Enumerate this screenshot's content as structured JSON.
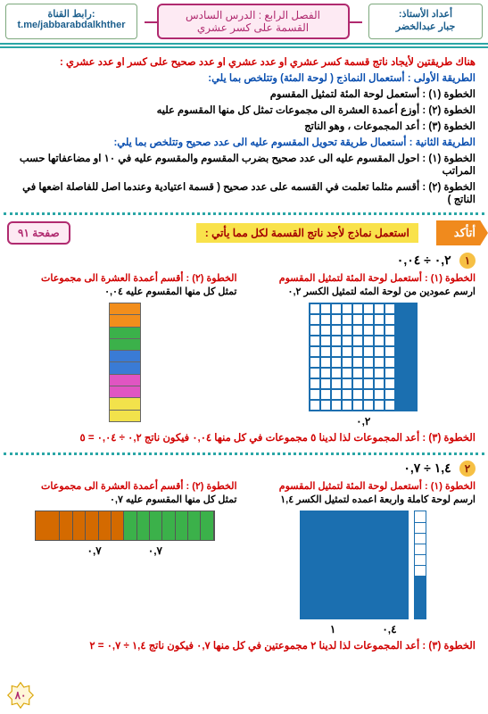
{
  "header": {
    "author_label": "أعداد الأستاذ:",
    "author_name": "جبار عبدالخضر",
    "title_line1": "الفصل الرابع : الدرس السادس",
    "title_line2": "القسمة على كسر عشري",
    "link_label": "رابط القناة:",
    "link_url": "t.me/jabbarabdalkhther"
  },
  "intro": "هناك طريقتين لأيجاد ناتج قسمة كسر عشري او عدد عشري او عدد صحيح على كسر او عدد عشري :",
  "method1_head": "الطريقة الأولى : أستعمال النماذج ( لوحة المئة) وتتلخص بما يلي:",
  "m1s1": "الخطوة (١) : أستعمل لوحة المئة لتمثيل المقسوم",
  "m1s2": "الخطوة (٢) : أوزع أعمدة العشرة الى مجموعات تمثل كل منها المقسوم عليه",
  "m1s3": "الخطوة (٣) : أعد المجموعات ، وهو الناتج",
  "method2_head": "الطريقة الثانية : أستعمال طريقة تحويل المقسوم عليه الى عدد صحيح وتتلخص بما يلي:",
  "m2s1": "الخطوة (١) : احول المقسوم عليه الى عدد صحيح بضرب المقسوم والمقسوم عليه في ١٠ او مضاعفاتها حسب المراتب",
  "m2s2": "الخطوة (٢) : أقسم مثلما تعلمت في القسمه على عدد صحيح  ( قسمة اعتيادية وعندما اصل للفاصلة اضعها في الناتج )",
  "assert": "أتأكد",
  "yellow": "استعمل نماذج لأجد ناتج القسمة لكل مما يأتي :",
  "page_tag": "صفحة ٩١",
  "p1": {
    "num": "١",
    "eq": "٠,٢  ÷  ٠,٠٤",
    "s1_label": "الخطوة (١) : أستعمل لوحة المئة لتمثيل المقسوم",
    "s1_sub": "ارسم عمودين من لوحة المئه لتمثيل الكسر ٠,٢",
    "s2_label": "الخطوة (٢) : أقسم أعمدة العشرة الى مجموعات",
    "s2_sub": "تمثل كل منها المقسوم عليه ٠,٠٤",
    "axis": "٠,٢",
    "seg_colors": [
      "#f28e1c",
      "#f28e1c",
      "#3bb14a",
      "#3bb14a",
      "#3a7bd5",
      "#3a7bd5",
      "#e055c2",
      "#e055c2",
      "#f2e24b",
      "#f2e24b"
    ],
    "result": "الخطوة (٣) :  أعد المجموعات  لذا لدينا ٥ مجموعات في كل منها ٠,٠٤  فيكون ناتج  ٠,٢  ÷  ٠,٠٤ = ٥"
  },
  "p2": {
    "num": "٢",
    "eq": "١,٤  ÷  ٠,٧",
    "s1_label": "الخطوة (١) : أستعمل لوحة المئة لتمثيل المقسوم",
    "s1_sub": "ارسم لوحة كاملة واربعة اعمده لتمثيل الكسر ١,٤",
    "s2_label": "الخطوة (٢) : أقسم أعمدة العشرة الى مجموعات",
    "s2_sub": "تمثل كل منها المقسوم عليه ٠,٧",
    "axis_a": "٠,٤",
    "axis_b": "١",
    "block_colors_row": [
      "#3bb14a",
      "#3bb14a",
      "#3bb14a",
      "#3bb14a",
      "#3bb14a",
      "#3bb14a",
      "#3bb14a",
      "#d46a00",
      "#d46a00",
      "#d46a00",
      "#d46a00",
      "#d46a00",
      "#d46a00",
      "#d46a00"
    ],
    "axis_c": "٠,٧",
    "axis_d": "٠,٧",
    "result": "الخطوة (٣) :  أعد المجموعات  لذا لدينا ٢ مجموعتين في كل منها  ٠,٧  فيكون ناتج  ١,٤  ÷  ٠,٧ = ٢"
  },
  "page_number": "٨٠"
}
